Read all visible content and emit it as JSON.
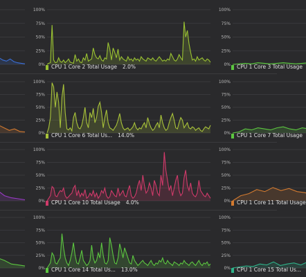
{
  "graphs": [
    {
      "id": "core1",
      "label": "",
      "value": "",
      "color": "#3a6fd8"
    },
    {
      "id": "core2",
      "label": "CPU 1 Core 2 Total Usage",
      "value": "2.0%",
      "color": "#9ac232",
      "data": [
        0,
        2,
        3,
        72,
        8,
        3,
        4,
        12,
        5,
        4,
        8,
        3,
        6,
        10,
        4,
        3,
        2,
        18,
        6,
        10,
        4,
        3,
        12,
        8,
        20,
        6,
        8,
        10,
        30,
        18,
        12,
        10,
        16,
        8,
        6,
        12,
        10,
        40,
        28,
        8,
        30,
        22,
        12,
        28,
        8,
        14,
        10,
        8,
        6,
        14,
        8,
        10,
        6,
        12,
        8,
        10,
        6,
        14,
        10,
        8,
        6,
        12,
        10,
        8,
        12,
        8,
        6,
        10,
        14,
        10,
        6,
        8,
        6,
        10,
        8,
        20,
        14,
        8,
        6,
        10,
        18,
        12,
        8,
        78,
        50,
        62,
        38,
        22,
        8,
        10,
        6,
        14,
        8,
        10,
        12,
        8,
        6,
        10,
        8,
        4
      ]
    },
    {
      "id": "core3",
      "label": "CPU 1 Core 3 Total Usage",
      "value": "",
      "color": "#5cc640"
    },
    {
      "id": "core5",
      "label": "",
      "value": "",
      "color": "#d27a30"
    },
    {
      "id": "core6",
      "label": "CPU 1 Core 6 Total Us...",
      "value": "14.0%",
      "color": "#a8c23a",
      "data": [
        0,
        10,
        30,
        98,
        90,
        50,
        80,
        60,
        10,
        70,
        95,
        40,
        8,
        6,
        10,
        4,
        30,
        40,
        20,
        10,
        8,
        15,
        30,
        50,
        20,
        10,
        40,
        30,
        48,
        20,
        30,
        52,
        60,
        40,
        10,
        30,
        45,
        20,
        10,
        8,
        5,
        10,
        15,
        25,
        38,
        20,
        10,
        6,
        8,
        10,
        5,
        8,
        12,
        20,
        10,
        6,
        10,
        8,
        15,
        20,
        10,
        30,
        18,
        10,
        5,
        8,
        15,
        20,
        10,
        35,
        20,
        10,
        5,
        8,
        20,
        30,
        38,
        25,
        10,
        8,
        20,
        30,
        25,
        10,
        15,
        20,
        10,
        8,
        12,
        10,
        5,
        8,
        10,
        5,
        3,
        8,
        12,
        10,
        8,
        15
      ]
    },
    {
      "id": "core7",
      "label": "CPU 1 Core 7 Total Usage",
      "value": "",
      "color": "#5cc640"
    },
    {
      "id": "core9",
      "label": "",
      "value": "",
      "color": "#9b3bc8"
    },
    {
      "id": "core10",
      "label": "CPU 1 Core 10 Total Usage",
      "value": "4.0%",
      "color": "#d03a6a",
      "data": [
        0,
        5,
        10,
        28,
        25,
        10,
        8,
        15,
        20,
        18,
        25,
        10,
        5,
        8,
        12,
        15,
        25,
        30,
        10,
        20,
        8,
        15,
        10,
        22,
        5,
        8,
        15,
        10,
        20,
        8,
        15,
        5,
        10,
        20,
        15,
        25,
        10,
        5,
        8,
        20,
        15,
        10,
        8,
        25,
        10,
        15,
        20,
        10,
        8,
        20,
        30,
        10,
        5,
        8,
        15,
        30,
        40,
        20,
        50,
        30,
        15,
        20,
        35,
        25,
        10,
        40,
        30,
        15,
        10,
        50,
        30,
        95,
        60,
        40,
        20,
        30,
        10,
        25,
        40,
        50,
        20,
        10,
        15,
        45,
        60,
        30,
        20,
        35,
        15,
        10,
        8,
        15,
        40,
        20,
        15,
        10,
        8,
        15,
        10,
        5
      ]
    },
    {
      "id": "core11",
      "label": "CPU 1 Core 11 Total Usage",
      "value": "",
      "color": "#d27a30"
    },
    {
      "id": "core13",
      "label": "",
      "value": "",
      "color": "#5cc640"
    },
    {
      "id": "core14",
      "label": "CPU 1 Core 14 Total Us...",
      "value": "13.0%",
      "color": "#5cc640",
      "data": [
        0,
        5,
        10,
        30,
        25,
        10,
        8,
        15,
        20,
        68,
        40,
        20,
        10,
        5,
        15,
        30,
        50,
        25,
        10,
        8,
        20,
        35,
        15,
        10,
        5,
        8,
        15,
        45,
        20,
        10,
        15,
        30,
        20,
        50,
        25,
        10,
        8,
        15,
        60,
        45,
        25,
        10,
        8,
        20,
        48,
        35,
        20,
        40,
        30,
        20,
        10,
        8,
        25,
        15,
        10,
        5,
        8,
        12,
        15,
        10,
        8,
        5,
        10,
        15,
        8,
        5,
        10,
        8,
        15,
        12,
        20,
        10,
        8,
        15,
        10,
        8,
        5,
        12,
        10,
        8,
        5,
        10,
        8,
        15,
        10,
        8,
        5,
        10,
        12,
        8,
        5,
        10,
        15,
        8,
        5,
        10,
        8,
        12,
        5,
        8
      ]
    },
    {
      "id": "core15",
      "label": "CPU 1 Core 15 Total Us...",
      "value": "",
      "color": "#2fb38a"
    }
  ],
  "y_ticks": [
    "100%",
    "75%",
    "50%",
    "25%",
    "0%"
  ]
}
